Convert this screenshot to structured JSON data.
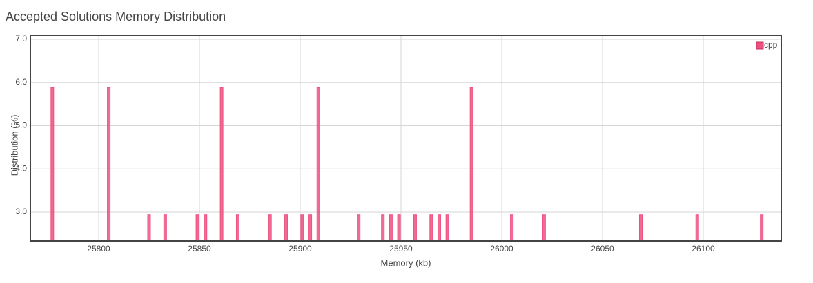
{
  "chart_data": {
    "type": "bar",
    "title": "Accepted Solutions Memory Distribution",
    "x_label": "Memory (kb)",
    "y_label": "Distribution (%)",
    "x": [
      25777,
      25805,
      25825,
      25833,
      25849,
      25853,
      25861,
      25869,
      25885,
      25893,
      25901,
      25905,
      25909,
      25929,
      25941,
      25945,
      25949,
      25957,
      25965,
      25969,
      25973,
      25985,
      26005,
      26021,
      26069,
      26097,
      26129
    ],
    "series": [
      {
        "name": "cpp",
        "color": "#ef5081",
        "values": [
          5.88,
          5.88,
          2.94,
          2.94,
          2.94,
          2.94,
          5.88,
          2.94,
          2.94,
          2.94,
          2.94,
          2.94,
          5.88,
          2.94,
          2.94,
          2.94,
          2.94,
          2.94,
          2.94,
          2.94,
          2.94,
          5.88,
          2.94,
          2.94,
          2.94,
          2.94,
          2.94
        ]
      }
    ],
    "xlim": [
      25766.1,
      26138.7
    ],
    "xticks": [
      25800,
      25850,
      25900,
      25950,
      26000,
      26050,
      26100
    ],
    "ylim": [
      2.33,
      7.08
    ],
    "yticks": [
      {
        "value": 3,
        "label": "3.0"
      },
      {
        "value": 4,
        "label": "4.0"
      },
      {
        "value": 5,
        "label": "5.0"
      },
      {
        "value": 6,
        "label": "6.0"
      },
      {
        "value": 7,
        "label": "7.0"
      }
    ],
    "grid": true,
    "legend": "top-right"
  }
}
